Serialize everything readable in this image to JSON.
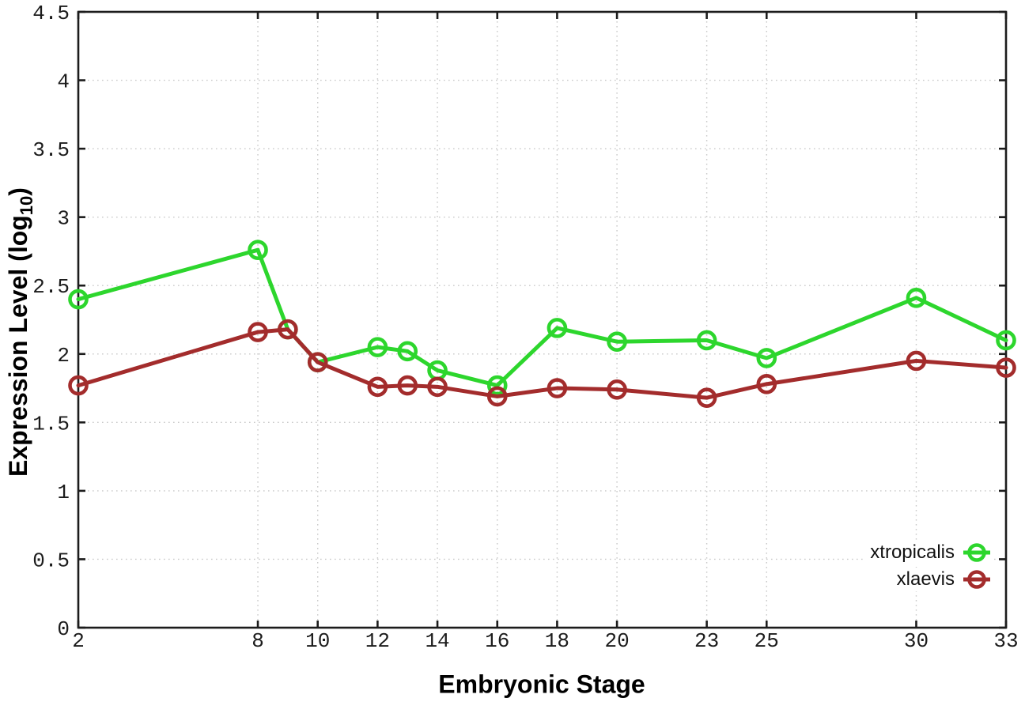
{
  "figure": {
    "background": "#ffffff",
    "border_color": "#1c1c1c",
    "grid_color": "#c9c9c9",
    "tick_color": "#1c1c1c",
    "tick_label_color": "#1c1c1c"
  },
  "chart_data": {
    "type": "line",
    "title": "",
    "xlabel": "Embryonic Stage",
    "ylabel": "Expression Level (log10)",
    "ylabel_base": "Expression Level (log",
    "ylabel_subscript": "10",
    "ylabel_close": ")",
    "xlim": [
      2,
      33
    ],
    "ylim": [
      0,
      4.5
    ],
    "x_ticks": [
      2,
      8,
      10,
      12,
      14,
      16,
      18,
      20,
      23,
      25,
      30,
      33
    ],
    "x_tick_labels": [
      "2",
      "8",
      "10",
      "12",
      "14",
      "16",
      "18",
      "20",
      "23",
      "25",
      "30",
      "33"
    ],
    "y_ticks": [
      0,
      0.5,
      1,
      1.5,
      2,
      2.5,
      3,
      3.5,
      4,
      4.5
    ],
    "y_tick_labels": [
      "0",
      "0.5",
      "1",
      "1.5",
      "2",
      "2.5",
      "3",
      "3.5",
      "4",
      "4.5"
    ],
    "grid": true,
    "grid_style": "dotted",
    "legend_position": "bottom-right",
    "marker": "open-circle",
    "x": [
      2,
      8,
      9,
      10,
      12,
      13,
      14,
      16,
      18,
      20,
      23,
      25,
      30,
      33
    ],
    "series": [
      {
        "name": "xtropicalis",
        "color": "#2dd62d",
        "values": [
          2.4,
          2.76,
          2.18,
          1.94,
          2.05,
          2.02,
          1.88,
          1.77,
          2.19,
          2.09,
          2.1,
          1.97,
          2.41,
          2.1
        ]
      },
      {
        "name": "xlaevis",
        "color": "#a32c2c",
        "values": [
          1.77,
          2.16,
          2.18,
          1.94,
          1.76,
          1.77,
          1.76,
          1.69,
          1.75,
          1.74,
          1.68,
          1.78,
          1.95,
          1.9
        ]
      }
    ]
  }
}
